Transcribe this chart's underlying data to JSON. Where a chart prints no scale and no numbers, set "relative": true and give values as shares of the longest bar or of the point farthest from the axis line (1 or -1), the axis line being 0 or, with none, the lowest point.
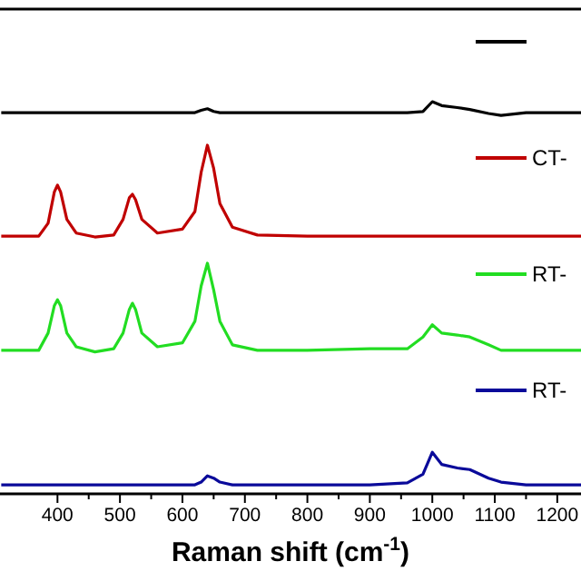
{
  "chart_data": {
    "type": "line",
    "relative": true,
    "xlabel": "Raman shift (cm$^{-1}$)",
    "xlim": [
      308,
      1238
    ],
    "xticks": [
      400,
      {
        "value": 450,
        "label": null
      },
      500,
      {
        "value": 550,
        "label": null
      },
      600,
      {
        "value": 650,
        "label": null
      },
      700,
      {
        "value": 750,
        "label": null
      },
      800,
      {
        "value": 850,
        "label": null
      },
      900,
      {
        "value": 950,
        "label": null
      },
      1000,
      {
        "value": 1050,
        "label": null
      },
      1100,
      {
        "value": 1150,
        "label": null
      },
      1200
    ],
    "x": [
      310,
      340,
      370,
      385,
      395,
      400,
      405,
      415,
      430,
      460,
      490,
      505,
      515,
      520,
      525,
      535,
      560,
      600,
      620,
      630,
      640,
      650,
      660,
      680,
      720,
      800,
      900,
      960,
      985,
      1000,
      1015,
      1040,
      1060,
      1090,
      1110,
      1150,
      1200,
      1238
    ],
    "legend": "right",
    "marker": "none",
    "line_style": "solid",
    "grid": false,
    "series": [
      {
        "color": "#000000",
        "values": [
          0.972,
          0.972,
          0.972,
          0.972,
          0.972,
          0.972,
          0.972,
          0.972,
          0.972,
          0.972,
          0.972,
          0.972,
          0.972,
          0.972,
          0.972,
          0.972,
          0.972,
          0.972,
          0.972,
          0.978,
          0.982,
          0.975,
          0.972,
          0.972,
          0.972,
          0.972,
          0.972,
          0.972,
          0.975,
          1.0,
          0.99,
          0.985,
          0.98,
          0.97,
          0.965,
          0.972,
          0.972,
          0.972
        ]
      },
      {
        "name": "CT-",
        "color": "#c00000",
        "values": [
          0.657,
          0.657,
          0.657,
          0.69,
          0.77,
          0.787,
          0.77,
          0.7,
          0.665,
          0.655,
          0.66,
          0.7,
          0.755,
          0.764,
          0.75,
          0.7,
          0.665,
          0.675,
          0.72,
          0.82,
          0.889,
          0.83,
          0.74,
          0.68,
          0.66,
          0.657,
          0.657,
          0.657,
          0.657,
          0.657,
          0.657,
          0.657,
          0.657,
          0.657,
          0.657,
          0.657,
          0.657,
          0.657
        ]
      },
      {
        "name": "RT-",
        "color": "#22dd22",
        "values": [
          0.366,
          0.366,
          0.366,
          0.41,
          0.48,
          0.495,
          0.48,
          0.41,
          0.375,
          0.362,
          0.37,
          0.41,
          0.47,
          0.486,
          0.47,
          0.41,
          0.375,
          0.385,
          0.44,
          0.53,
          0.588,
          0.52,
          0.44,
          0.38,
          0.366,
          0.366,
          0.37,
          0.37,
          0.4,
          0.431,
          0.41,
          0.405,
          0.4,
          0.38,
          0.366,
          0.366,
          0.366,
          0.366
        ]
      },
      {
        "name": "RT-",
        "color": "#0a0a9a",
        "values": [
          0.023,
          0.023,
          0.023,
          0.023,
          0.023,
          0.023,
          0.023,
          0.023,
          0.023,
          0.023,
          0.023,
          0.023,
          0.023,
          0.023,
          0.023,
          0.023,
          0.023,
          0.023,
          0.023,
          0.03,
          0.046,
          0.04,
          0.03,
          0.023,
          0.023,
          0.023,
          0.023,
          0.028,
          0.05,
          0.106,
          0.075,
          0.066,
          0.062,
          0.04,
          0.03,
          0.023,
          0.023,
          0.023
        ]
      }
    ]
  }
}
